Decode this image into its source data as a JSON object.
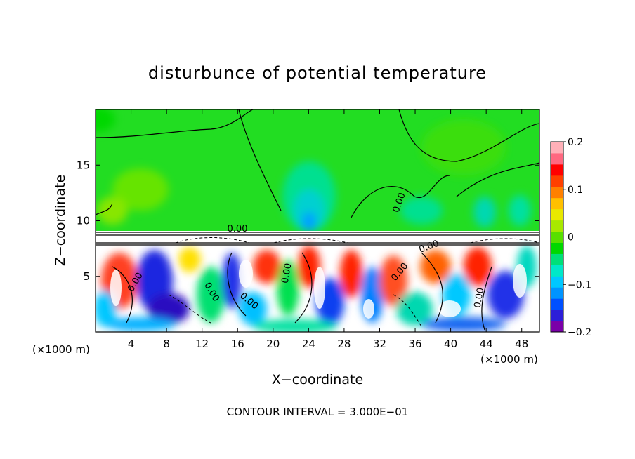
{
  "chart_data": {
    "type": "heatmap",
    "title": "disturbunce of potential temperature",
    "xlabel": "X−coordinate",
    "ylabel": "Z−coordinate",
    "x_unit_left": "(×1000 m)",
    "x_unit_right": "(×1000 m)",
    "footer": "CONTOUR INTERVAL = 3.000E−01",
    "xlim": [
      0,
      50
    ],
    "ylim": [
      0,
      20
    ],
    "x_ticks": [
      4,
      8,
      12,
      16,
      20,
      24,
      28,
      32,
      36,
      40,
      44,
      48
    ],
    "y_ticks": [
      5,
      10,
      15
    ],
    "colorbar": {
      "range": [
        -0.2,
        0.2
      ],
      "tick_values": [
        0.2,
        0.1,
        0,
        -0.1,
        -0.2
      ],
      "tick_labels": [
        "0.2",
        "0.1",
        "0",
        "−0.1",
        "−0.2"
      ],
      "colors": [
        "#7a00a8",
        "#2c1ed8",
        "#0050ff",
        "#0094ff",
        "#00c8ff",
        "#00e8c8",
        "#00e078",
        "#00d800",
        "#58e000",
        "#a8e800",
        "#e8e800",
        "#ffc000",
        "#ff8000",
        "#ff4000",
        "#ff0000",
        "#ff6880",
        "#ffb0b8"
      ]
    },
    "contour_labels": [
      "0.00",
      "0.00",
      "0.00",
      "0.00",
      "0.00",
      "0.00",
      "0.00",
      "0.00",
      "0.00"
    ],
    "contour_interval": 0.3
  }
}
